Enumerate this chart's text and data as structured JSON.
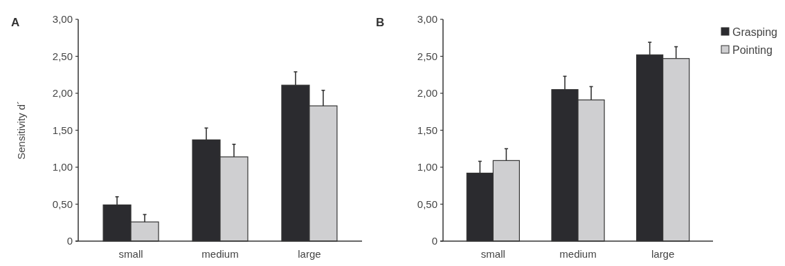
{
  "chart_data": [
    {
      "type": "bar",
      "title": "A",
      "ylabel": "Sensitivity d´",
      "categories": [
        "small",
        "medium",
        "large"
      ],
      "series": [
        {
          "color": "#2b2b2f",
          "values": [
            0.49,
            1.37,
            2.11
          ],
          "errors": [
            [
              0.49,
              0.6
            ],
            [
              1.37,
              1.53
            ],
            [
              2.11,
              2.29
            ]
          ]
        },
        {
          "color": "#cfcfd1",
          "values": [
            0.26,
            1.14,
            1.83
          ],
          "errors": [
            [
              0.26,
              0.36
            ],
            [
              1.14,
              1.31
            ],
            [
              1.83,
              2.04
            ]
          ]
        }
      ],
      "ylim": [
        0,
        3
      ],
      "yticks": [
        0,
        {
          "value": 0.5,
          "label": "0,50"
        },
        {
          "value": 1,
          "label": "1,00"
        },
        {
          "value": 1.5,
          "label": "1,50"
        },
        {
          "value": 2,
          "label": "2,00"
        },
        {
          "value": 2.5,
          "label": "2,50"
        },
        {
          "value": 3,
          "label": "3,00"
        }
      ],
      "grid": false,
      "legend": false
    },
    {
      "type": "bar",
      "title": "B",
      "categories": [
        "small",
        "medium",
        "large"
      ],
      "series": [
        {
          "name": "Grasping",
          "color": "#2b2b2f",
          "values": [
            0.92,
            2.05,
            2.52
          ],
          "errors": [
            [
              0.92,
              1.08
            ],
            [
              2.05,
              2.23
            ],
            [
              2.52,
              2.69
            ]
          ]
        },
        {
          "name": "Pointing",
          "color": "#cfcfd1",
          "values": [
            1.09,
            1.91,
            2.47
          ],
          "errors": [
            [
              1.09,
              1.25
            ],
            [
              1.91,
              2.09
            ],
            [
              2.47,
              2.63
            ]
          ]
        }
      ],
      "ylim": [
        0,
        3
      ],
      "yticks": [
        0,
        {
          "value": 0.5,
          "label": "0,50"
        },
        {
          "value": 1,
          "label": "1,00"
        },
        {
          "value": 1.5,
          "label": "1,50"
        },
        {
          "value": 2,
          "label": "2,00"
        },
        {
          "value": 2.5,
          "label": "2,50"
        },
        {
          "value": 3,
          "label": "3,00"
        }
      ],
      "grid": false,
      "legend": "top right"
    }
  ]
}
